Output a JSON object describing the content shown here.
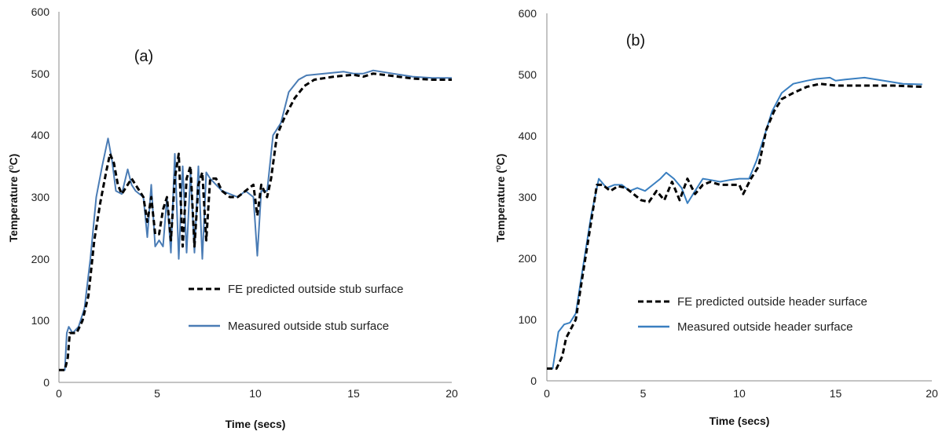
{
  "chart_data": [
    {
      "type": "line",
      "panel_label": "(a)",
      "xlabel": "Time (secs)",
      "ylabel": "Temperature (",
      "ylabel_sup": "o",
      "ylabel_end": "C)",
      "xlim": [
        0,
        20
      ],
      "ylim": [
        0,
        600
      ],
      "xticks": [
        "0",
        "5",
        "10",
        "15",
        "20"
      ],
      "yticks": [
        "0",
        "100",
        "200",
        "300",
        "400",
        "500",
        "600"
      ],
      "grid": false,
      "legend_position": "middle-right",
      "series": [
        {
          "name": "FE predicted outside stub surface",
          "style": "dashed",
          "color": "#000000",
          "points": [
            [
              0,
              20
            ],
            [
              0.3,
              20
            ],
            [
              0.45,
              40
            ],
            [
              0.55,
              80
            ],
            [
              0.9,
              80
            ],
            [
              1.2,
              100
            ],
            [
              1.5,
              140
            ],
            [
              1.8,
              230
            ],
            [
              2.1,
              290
            ],
            [
              2.4,
              340
            ],
            [
              2.6,
              370
            ],
            [
              2.8,
              355
            ],
            [
              3.0,
              320
            ],
            [
              3.2,
              305
            ],
            [
              3.5,
              320
            ],
            [
              3.7,
              330
            ],
            [
              3.9,
              320
            ],
            [
              4.1,
              310
            ],
            [
              4.3,
              300
            ],
            [
              4.5,
              260
            ],
            [
              4.7,
              300
            ],
            [
              4.9,
              240
            ],
            [
              5.1,
              240
            ],
            [
              5.3,
              280
            ],
            [
              5.5,
              300
            ],
            [
              5.7,
              230
            ],
            [
              5.9,
              330
            ],
            [
              6.1,
              370
            ],
            [
              6.3,
              220
            ],
            [
              6.5,
              330
            ],
            [
              6.7,
              350
            ],
            [
              6.9,
              220
            ],
            [
              7.1,
              320
            ],
            [
              7.3,
              340
            ],
            [
              7.5,
              230
            ],
            [
              7.7,
              330
            ],
            [
              8.0,
              330
            ],
            [
              8.3,
              310
            ],
            [
              8.7,
              300
            ],
            [
              9.1,
              300
            ],
            [
              9.5,
              310
            ],
            [
              9.9,
              320
            ],
            [
              10.1,
              270
            ],
            [
              10.3,
              320
            ],
            [
              10.6,
              300
            ],
            [
              10.8,
              330
            ],
            [
              11.1,
              400
            ],
            [
              11.5,
              430
            ],
            [
              12.0,
              460
            ],
            [
              12.5,
              480
            ],
            [
              13.0,
              490
            ],
            [
              14.0,
              495
            ],
            [
              15.0,
              498
            ],
            [
              15.5,
              495
            ],
            [
              16.0,
              500
            ],
            [
              17.0,
              496
            ],
            [
              18.0,
              492
            ],
            [
              19.0,
              490
            ],
            [
              20.0,
              490
            ]
          ]
        },
        {
          "name": "Measured outside stub surface",
          "style": "solid",
          "color": "#4a7cb5",
          "points": [
            [
              0,
              20
            ],
            [
              0.3,
              20
            ],
            [
              0.4,
              80
            ],
            [
              0.5,
              90
            ],
            [
              0.7,
              80
            ],
            [
              1.0,
              90
            ],
            [
              1.3,
              120
            ],
            [
              1.6,
              200
            ],
            [
              1.9,
              300
            ],
            [
              2.2,
              350
            ],
            [
              2.5,
              395
            ],
            [
              2.7,
              360
            ],
            [
              2.9,
              310
            ],
            [
              3.2,
              305
            ],
            [
              3.5,
              345
            ],
            [
              3.7,
              320
            ],
            [
              3.9,
              310
            ],
            [
              4.1,
              305
            ],
            [
              4.3,
              300
            ],
            [
              4.5,
              235
            ],
            [
              4.7,
              320
            ],
            [
              4.9,
              220
            ],
            [
              5.1,
              230
            ],
            [
              5.3,
              220
            ],
            [
              5.5,
              300
            ],
            [
              5.7,
              210
            ],
            [
              5.9,
              370
            ],
            [
              6.1,
              200
            ],
            [
              6.3,
              350
            ],
            [
              6.5,
              210
            ],
            [
              6.7,
              340
            ],
            [
              6.9,
              210
            ],
            [
              7.1,
              350
            ],
            [
              7.3,
              200
            ],
            [
              7.5,
              340
            ],
            [
              7.7,
              330
            ],
            [
              8.0,
              320
            ],
            [
              8.3,
              310
            ],
            [
              8.7,
              305
            ],
            [
              9.1,
              300
            ],
            [
              9.5,
              310
            ],
            [
              9.9,
              300
            ],
            [
              10.1,
              205
            ],
            [
              10.3,
              310
            ],
            [
              10.6,
              310
            ],
            [
              10.9,
              400
            ],
            [
              11.3,
              420
            ],
            [
              11.7,
              470
            ],
            [
              12.2,
              490
            ],
            [
              12.6,
              497
            ],
            [
              13.5,
              500
            ],
            [
              14.5,
              503
            ],
            [
              15.0,
              500
            ],
            [
              15.5,
              500
            ],
            [
              16.0,
              505
            ],
            [
              17.0,
              500
            ],
            [
              18.0,
              495
            ],
            [
              19.0,
              493
            ],
            [
              20.0,
              493
            ]
          ]
        }
      ]
    },
    {
      "type": "line",
      "panel_label": "(b)",
      "xlabel": "Time (secs)",
      "ylabel": "Temperature (",
      "ylabel_sup": "o",
      "ylabel_end": "C)",
      "xlim": [
        0,
        20
      ],
      "ylim": [
        0,
        600
      ],
      "xticks": [
        "0",
        "5",
        "10",
        "15",
        "20"
      ],
      "yticks": [
        "0",
        "100",
        "200",
        "300",
        "400",
        "500",
        "600"
      ],
      "grid": false,
      "legend_position": "bottom-right",
      "series": [
        {
          "name": "FE predicted outside header surface",
          "style": "dashed",
          "color": "#000000",
          "points": [
            [
              0,
              20
            ],
            [
              0.5,
              20
            ],
            [
              0.8,
              40
            ],
            [
              1.0,
              70
            ],
            [
              1.5,
              100
            ],
            [
              1.9,
              180
            ],
            [
              2.3,
              260
            ],
            [
              2.6,
              320
            ],
            [
              2.9,
              320
            ],
            [
              3.3,
              310
            ],
            [
              3.7,
              318
            ],
            [
              4.1,
              315
            ],
            [
              4.5,
              305
            ],
            [
              4.9,
              295
            ],
            [
              5.3,
              292
            ],
            [
              5.7,
              310
            ],
            [
              6.1,
              295
            ],
            [
              6.5,
              325
            ],
            [
              6.9,
              295
            ],
            [
              7.3,
              330
            ],
            [
              7.7,
              305
            ],
            [
              8.1,
              320
            ],
            [
              8.5,
              325
            ],
            [
              9.0,
              320
            ],
            [
              9.5,
              320
            ],
            [
              10.0,
              320
            ],
            [
              10.2,
              305
            ],
            [
              10.6,
              330
            ],
            [
              11.0,
              350
            ],
            [
              11.4,
              410
            ],
            [
              11.8,
              440
            ],
            [
              12.2,
              460
            ],
            [
              12.8,
              470
            ],
            [
              13.5,
              480
            ],
            [
              14.2,
              485
            ],
            [
              15.0,
              482
            ],
            [
              16.0,
              482
            ],
            [
              17.0,
              482
            ],
            [
              18.0,
              482
            ],
            [
              19.5,
              480
            ]
          ]
        },
        {
          "name": "Measured outside header surface",
          "style": "solid",
          "color": "#3a7fc0",
          "points": [
            [
              0,
              20
            ],
            [
              0.3,
              20
            ],
            [
              0.6,
              80
            ],
            [
              0.9,
              92
            ],
            [
              1.2,
              95
            ],
            [
              1.5,
              110
            ],
            [
              1.9,
              190
            ],
            [
              2.3,
              270
            ],
            [
              2.7,
              330
            ],
            [
              3.1,
              315
            ],
            [
              3.5,
              320
            ],
            [
              3.9,
              320
            ],
            [
              4.3,
              310
            ],
            [
              4.7,
              315
            ],
            [
              5.1,
              310
            ],
            [
              5.5,
              320
            ],
            [
              5.9,
              330
            ],
            [
              6.2,
              340
            ],
            [
              6.6,
              330
            ],
            [
              7.0,
              315
            ],
            [
              7.3,
              290
            ],
            [
              7.7,
              310
            ],
            [
              8.1,
              330
            ],
            [
              8.5,
              328
            ],
            [
              9.0,
              325
            ],
            [
              9.5,
              328
            ],
            [
              10.0,
              330
            ],
            [
              10.5,
              330
            ],
            [
              10.9,
              360
            ],
            [
              11.3,
              400
            ],
            [
              11.7,
              440
            ],
            [
              12.2,
              470
            ],
            [
              12.8,
              485
            ],
            [
              13.5,
              490
            ],
            [
              14.0,
              493
            ],
            [
              14.7,
              495
            ],
            [
              15.0,
              490
            ],
            [
              15.5,
              492
            ],
            [
              16.5,
              495
            ],
            [
              17.5,
              490
            ],
            [
              18.5,
              485
            ],
            [
              19.5,
              484
            ]
          ]
        }
      ]
    }
  ]
}
